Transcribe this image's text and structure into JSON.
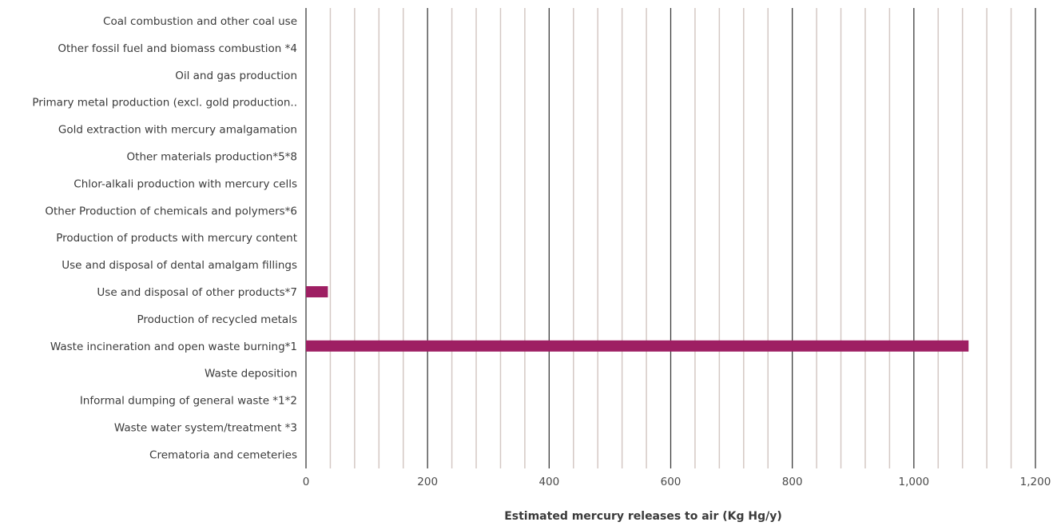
{
  "chart_data": {
    "type": "bar",
    "orientation": "horizontal",
    "categories": [
      "Coal combustion and other coal use",
      "Other fossil fuel and biomass combustion *4",
      "Oil and gas production",
      "Primary metal production (excl. gold production..",
      "Gold extraction with mercury amalgamation",
      "Other materials production*5*8",
      "Chlor-alkali production with mercury cells",
      "Other Production of chemicals and polymers*6",
      "Production of products with mercury content",
      "Use and disposal of dental amalgam fillings",
      "Use and disposal of other products*7",
      "Production of recycled metals",
      "Waste incineration and open waste burning*1",
      "Waste deposition",
      "Informal dumping of general waste *1*2",
      "Waste water system/treatment *3",
      "Crematoria and cemeteries"
    ],
    "values": [
      0,
      0,
      0,
      0,
      0,
      0,
      0,
      0,
      0,
      0,
      36,
      0,
      1090,
      0,
      0,
      0,
      0
    ],
    "xlabel": "Estimated mercury releases to air (Kg Hg/y)",
    "ylabel": "",
    "title": "",
    "xlim": [
      0,
      1200
    ],
    "major_ticks": [
      0,
      200,
      400,
      600,
      800,
      1000,
      1200
    ],
    "tick_labels": [
      "0",
      "200",
      "400",
      "600",
      "800",
      "1,000",
      "1,200"
    ],
    "minor_tick_step": 40,
    "grid": true,
    "legend": "none",
    "colors": {
      "bar": "#9e1f63",
      "major_grid": "#3c3c3c",
      "minor_grid": "#d4c8c4"
    }
  }
}
